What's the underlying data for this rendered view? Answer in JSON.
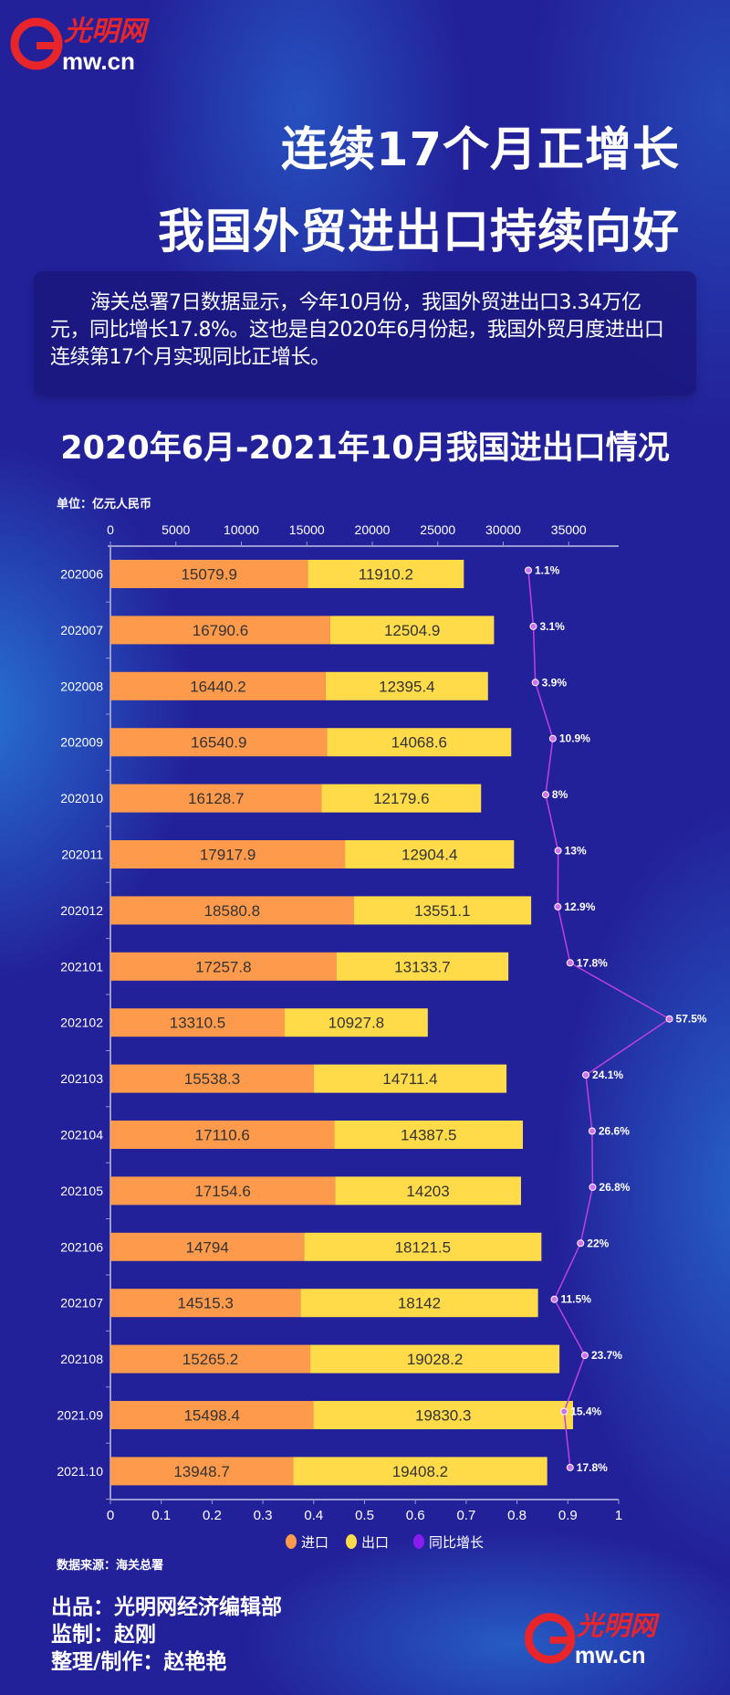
{
  "brand": {
    "logo_text": "光明网 Gmw.cn"
  },
  "header": {
    "title_line1": "连续17个月正增长",
    "title_line2": "我国外贸进出口持续向好"
  },
  "intro": "海关总署7日数据显示，今年10月份，我国外贸进出口3.34万亿元，同比增长17.8%。这也是自2020年6月份起，我国外贸月度进出口连续第17个月实现同比正增长。",
  "chart_data": {
    "type": "bar",
    "stacked": true,
    "orientation": "horizontal",
    "title": "2020年6月-2021年10月我国进出口情况",
    "unit": "单位：亿元人民币",
    "categories": [
      "202006",
      "202007",
      "202008",
      "202009",
      "202010",
      "202011",
      "202012",
      "202101",
      "202102",
      "202103",
      "202104",
      "202105",
      "202106",
      "202107",
      "202108",
      "2021.09",
      "2021.10"
    ],
    "series": [
      {
        "name": "进口",
        "color": "#fe9a4c",
        "values": [
          15079.9,
          16790.6,
          16440.2,
          16540.9,
          16128.7,
          17917.9,
          18580.8,
          17257.8,
          13310.5,
          15538.3,
          17110.6,
          17154.6,
          14794,
          14515.3,
          15265.2,
          15498.4,
          13948.7
        ]
      },
      {
        "name": "出口",
        "color": "#ffdb4a",
        "values": [
          11910.2,
          12504.9,
          12395.4,
          14068.6,
          12179.6,
          12904.4,
          13551.1,
          13133.7,
          10927.8,
          14711.4,
          14387.5,
          14203,
          18121.5,
          18142,
          19028.2,
          19830.3,
          19408.2
        ]
      },
      {
        "name": "同比增长",
        "type": "line",
        "color": "#c040e0",
        "legend_color": "#8a1cf0",
        "unit": "%",
        "values": [
          1.1,
          3.1,
          3.9,
          10.9,
          8,
          13,
          12.9,
          17.8,
          57.5,
          24.1,
          26.6,
          26.8,
          22,
          11.5,
          23.7,
          15.4,
          17.8
        ]
      }
    ],
    "top_axis": {
      "range": [
        0,
        38000
      ],
      "ticks": [
        0,
        5000,
        10000,
        15000,
        20000,
        25000,
        30000,
        35000
      ]
    },
    "bottom_axis": {
      "range": [
        0,
        1
      ],
      "ticks": [
        0,
        0.1,
        0.2,
        0.3,
        0.4,
        0.5,
        0.6,
        0.7,
        0.8,
        0.9,
        1
      ]
    },
    "legend_position": "bottom",
    "grid": false
  },
  "source": "数据来源：海关总署",
  "credits": [
    "出品：光明网经济编辑部",
    "监制：赵刚",
    "整理/制作：赵艳艳"
  ]
}
